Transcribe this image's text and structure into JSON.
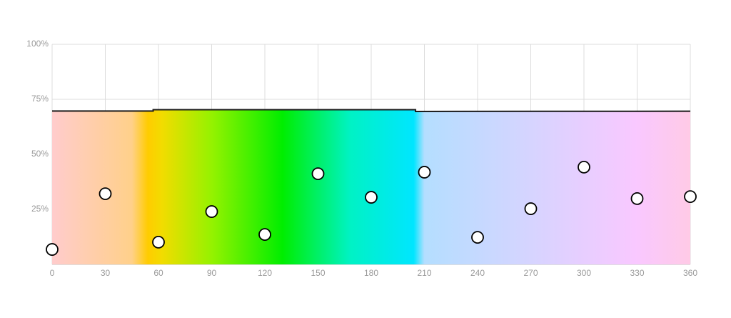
{
  "chart_data": {
    "type": "scatter",
    "xlim": [
      0,
      360
    ],
    "ylim": [
      0,
      100
    ],
    "xticks": [
      0,
      30,
      60,
      90,
      120,
      150,
      180,
      210,
      240,
      270,
      300,
      330,
      360
    ],
    "yticks": [
      {
        "value": 25,
        "label": "25%"
      },
      {
        "value": 50,
        "label": "50%"
      },
      {
        "value": 75,
        "label": "75%"
      },
      {
        "value": 100,
        "label": "100%"
      }
    ],
    "grid": true,
    "gradient_stops": [
      {
        "x": 0,
        "color": "#ffcccc"
      },
      {
        "x": 45,
        "color": "#ffd08a"
      },
      {
        "x": 54,
        "color": "#ffcc00"
      },
      {
        "x": 62,
        "color": "#f2dc00"
      },
      {
        "x": 90,
        "color": "#95f200"
      },
      {
        "x": 130,
        "color": "#00ee00"
      },
      {
        "x": 168,
        "color": "#00f2c4"
      },
      {
        "x": 204,
        "color": "#00e6ff"
      },
      {
        "x": 210,
        "color": "#b4deff"
      },
      {
        "x": 270,
        "color": "#d6d4ff"
      },
      {
        "x": 330,
        "color": "#f9c8ff"
      },
      {
        "x": 360,
        "color": "#ffcae6"
      }
    ],
    "series": [
      {
        "type": "line",
        "color": "#1a1a1a",
        "x": [
          0,
          57,
          57,
          205,
          205,
          360
        ],
        "values": [
          69.7,
          69.7,
          70.3,
          70.3,
          69.5,
          69.6
        ]
      },
      {
        "type": "scatter",
        "color": "#ffffff",
        "x": [
          0,
          30,
          60,
          90,
          120,
          150,
          180,
          210,
          240,
          270,
          300,
          330,
          360
        ],
        "values": [
          6.8,
          32.1,
          10.1,
          24,
          13.6,
          41.2,
          30.5,
          41.9,
          12.3,
          25.3,
          44.2,
          29.9,
          30.8
        ]
      }
    ]
  }
}
